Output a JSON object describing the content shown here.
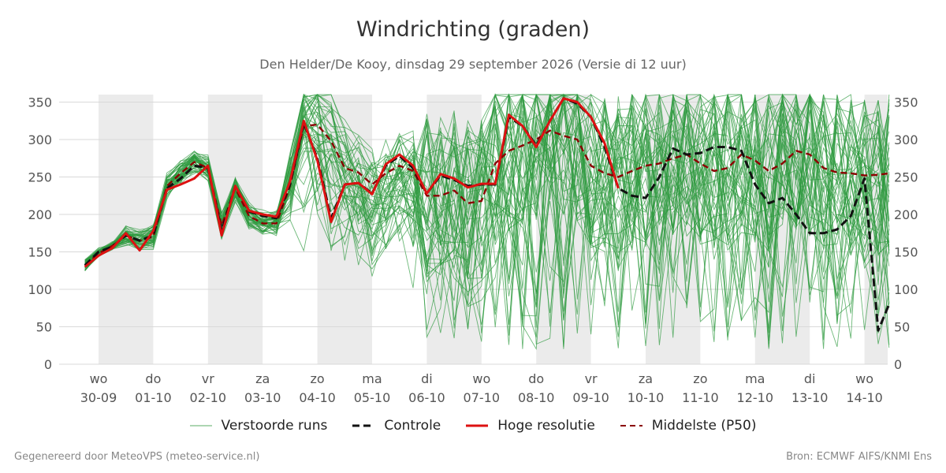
{
  "title": "Windrichting (graden)",
  "subtitle": "Den Helder/De Kooy, dinsdag 29 september 2026 (Versie di 12 uur)",
  "footer": {
    "left": "Gegenereerd door MeteoVPS (meteo-service.nl)",
    "right": "Bron: ECMWF AIFS/KNMI Ens"
  },
  "legend": {
    "ensemble": "Verstoorde runs",
    "control": "Controle",
    "hires": "Hoge resolutie",
    "median": "Middelste (P50)"
  },
  "colors": {
    "ensemble": "#2e9a3e",
    "control": "#111111",
    "hires": "#dd1111",
    "median": "#8b0000",
    "shade": "#ebebeb",
    "grid": "#d9d9d9"
  },
  "chart_data": {
    "type": "line",
    "x_unit": "days since 30-09 00:00 (tick labels as shown)",
    "ylim": [
      0,
      360
    ],
    "xlim": [
      -0.1,
      14.45
    ],
    "y_ticks": [
      0,
      50,
      100,
      150,
      200,
      250,
      300,
      350
    ],
    "x_ticks": [
      {
        "day": "wo",
        "date": "30-09"
      },
      {
        "day": "do",
        "date": "01-10"
      },
      {
        "day": "vr",
        "date": "02-10"
      },
      {
        "day": "za",
        "date": "03-10"
      },
      {
        "day": "zo",
        "date": "04-10"
      },
      {
        "day": "ma",
        "date": "05-10"
      },
      {
        "day": "di",
        "date": "06-10"
      },
      {
        "day": "wo",
        "date": "07-10"
      },
      {
        "day": "do",
        "date": "08-10"
      },
      {
        "day": "vr",
        "date": "09-10"
      },
      {
        "day": "za",
        "date": "10-10"
      },
      {
        "day": "zo",
        "date": "11-10"
      },
      {
        "day": "ma",
        "date": "12-10"
      },
      {
        "day": "di",
        "date": "13-10"
      },
      {
        "day": "wo",
        "date": "14-10"
      }
    ],
    "shaded_days": [
      [
        0,
        1
      ],
      [
        2,
        3
      ],
      [
        4,
        5
      ],
      [
        6,
        7
      ],
      [
        8,
        9
      ],
      [
        10,
        11
      ],
      [
        12,
        13
      ],
      [
        14,
        14.45
      ]
    ],
    "series": [
      {
        "name": "Hoge resolutie",
        "x": [
          -0.25,
          0,
          0.25,
          0.5,
          0.75,
          1,
          1.25,
          1.5,
          1.75,
          2,
          2.25,
          2.5,
          2.75,
          3,
          3.25,
          3.5,
          3.75,
          4,
          4.25,
          4.5,
          4.75,
          5,
          5.25,
          5.5,
          5.75,
          6,
          6.25,
          6.5,
          6.75,
          7,
          7.25,
          7.5,
          7.75,
          8,
          8.25,
          8.5,
          8.75,
          9,
          9.25,
          9.5
        ],
        "values": [
          130,
          145,
          155,
          175,
          152,
          178,
          233,
          240,
          248,
          265,
          172,
          238,
          205,
          200,
          197,
          244,
          325,
          272,
          190,
          240,
          242,
          227,
          267,
          280,
          265,
          228,
          254,
          248,
          236,
          241,
          241,
          333,
          318,
          290,
          325,
          355,
          350,
          330,
          295,
          235
        ]
      },
      {
        "name": "Middelste (P50)",
        "x": [
          -0.25,
          0,
          0.25,
          0.5,
          0.75,
          1,
          1.25,
          1.5,
          1.75,
          2,
          2.25,
          2.5,
          2.75,
          3,
          3.25,
          3.5,
          3.75,
          4,
          4.25,
          4.5,
          4.75,
          5,
          5.25,
          5.5,
          5.75,
          6,
          6.25,
          6.5,
          6.75,
          7,
          7.25,
          7.5,
          7.75,
          8,
          8.25,
          8.5,
          8.75,
          9,
          9.25,
          9.5,
          9.75,
          10,
          10.25,
          10.5,
          10.75,
          11,
          11.25,
          11.5,
          11.75,
          12,
          12.25,
          12.5,
          12.75,
          13,
          13.25,
          13.5,
          13.75,
          14,
          14.25,
          14.45
        ],
        "values": [
          132,
          148,
          158,
          172,
          165,
          170,
          238,
          255,
          270,
          262,
          185,
          235,
          198,
          188,
          188,
          238,
          318,
          320,
          298,
          262,
          256,
          240,
          255,
          265,
          258,
          225,
          225,
          232,
          215,
          218,
          268,
          285,
          292,
          300,
          312,
          305,
          300,
          265,
          255,
          250,
          258,
          265,
          268,
          275,
          280,
          268,
          258,
          262,
          280,
          272,
          258,
          268,
          285,
          280,
          262,
          256,
          255,
          252,
          253,
          255
        ]
      },
      {
        "name": "Controle",
        "x": [
          -0.25,
          0,
          0.25,
          0.5,
          0.75,
          1,
          1.25,
          1.5,
          1.75,
          2,
          2.25,
          2.5,
          2.75,
          3,
          3.25,
          3.5,
          3.75,
          4,
          4.25,
          4.5,
          4.75,
          5,
          5.25,
          5.5,
          5.75,
          6,
          6.25,
          6.5,
          6.75,
          7,
          7.25,
          7.5,
          7.75,
          8,
          8.25,
          8.5,
          8.75,
          9,
          9.25,
          9.5,
          9.75,
          10,
          10.25,
          10.5,
          10.75,
          11,
          11.25,
          11.5,
          11.75,
          12,
          12.25,
          12.5,
          12.75,
          13,
          13.25,
          13.5,
          13.75,
          14,
          14.25,
          14.45
        ],
        "values": [
          132,
          150,
          157,
          172,
          165,
          172,
          235,
          248,
          265,
          262,
          178,
          238,
          204,
          198,
          195,
          240,
          322,
          275,
          195,
          240,
          242,
          228,
          265,
          278,
          262,
          228,
          252,
          246,
          238,
          240,
          240,
          330,
          318,
          292,
          325,
          355,
          348,
          330,
          290,
          235,
          225,
          222,
          250,
          288,
          280,
          282,
          290,
          290,
          285,
          240,
          215,
          222,
          200,
          175,
          175,
          180,
          198,
          248,
          45,
          80
        ]
      }
    ],
    "ensemble_members": 50,
    "ensemble_note": "50 perturbed runs (Verstoorde runs), thin green lines"
  }
}
